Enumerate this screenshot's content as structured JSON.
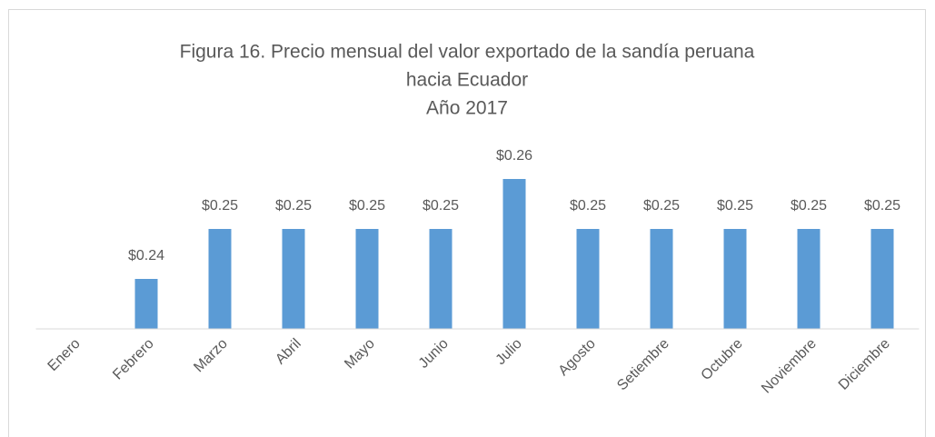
{
  "chart_data": {
    "type": "bar",
    "title": [
      "Figura 16. Precio mensual del valor exportado de la sandía peruana",
      "hacia Ecuador"
    ],
    "subtitle": "Año 2017",
    "categories": [
      "Enero",
      "Febrero",
      "Marzo",
      "Abril",
      "Mayo",
      "Junio",
      "Julio",
      "Agosto",
      "Setiembre",
      "Octubre",
      "Noviembre",
      "Diciembre"
    ],
    "values": [
      null,
      0.24,
      0.25,
      0.25,
      0.25,
      0.25,
      0.26,
      0.25,
      0.25,
      0.25,
      0.25,
      0.25
    ],
    "value_labels": [
      null,
      "$0.24",
      "$0.25",
      "$0.25",
      "$0.25",
      "$0.25",
      "$0.26",
      "$0.25",
      "$0.25",
      "$0.25",
      "$0.25",
      "$0.25"
    ],
    "color": "#5b9bd5",
    "ylim": [
      0.23,
      0.265
    ]
  }
}
